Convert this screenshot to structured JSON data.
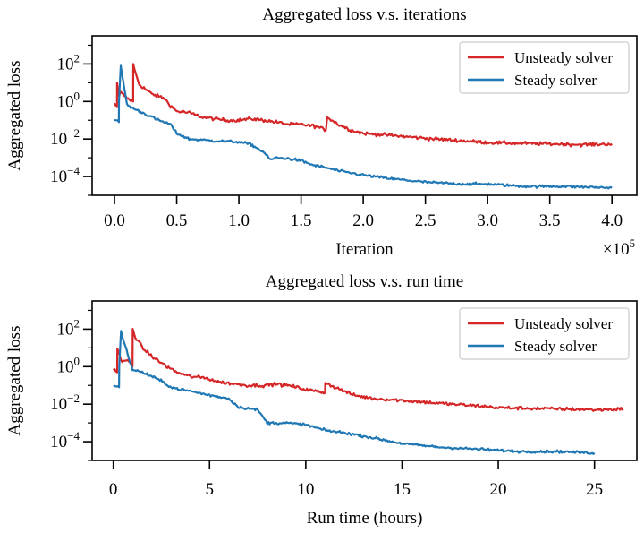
{
  "chart_data": [
    {
      "type": "line",
      "title": "Aggregated loss v.s. iterations",
      "xlabel": "Iteration",
      "ylabel": "Aggregated loss",
      "x_scale_factor": "×10",
      "x_scale_exponent": "5",
      "xlim": [
        -0.18,
        4.2
      ],
      "ylog": true,
      "ylim_exp": [
        -5.0,
        3.5
      ],
      "xticks": [
        {
          "v": 0.0,
          "label": "0.0"
        },
        {
          "v": 0.5,
          "label": "0.5"
        },
        {
          "v": 1.0,
          "label": "1.0"
        },
        {
          "v": 1.5,
          "label": "1.5"
        },
        {
          "v": 2.0,
          "label": "2.0"
        },
        {
          "v": 2.5,
          "label": "2.5"
        },
        {
          "v": 3.0,
          "label": "3.0"
        },
        {
          "v": 3.5,
          "label": "3.5"
        },
        {
          "v": 4.0,
          "label": "4.0"
        }
      ],
      "yticks": [
        {
          "e": 2,
          "base": "10",
          "exp": "2"
        },
        {
          "e": 0,
          "base": "10",
          "exp": "0"
        },
        {
          "e": -2,
          "base": "10",
          "exp": "−2"
        },
        {
          "e": -4,
          "base": "10",
          "exp": "−4"
        }
      ],
      "grid": false,
      "legend_position": "top-right",
      "series": [
        {
          "name": "Unsteady solver",
          "color": "#d62728",
          "noise": 0.09,
          "x": [
            0.0,
            0.02,
            0.021,
            0.035,
            0.05,
            0.1,
            0.15,
            0.151,
            0.17,
            0.2,
            0.3,
            0.4,
            0.45,
            0.5,
            0.6,
            0.7,
            0.8,
            0.9,
            1.0,
            1.1,
            1.2,
            1.3,
            1.4,
            1.5,
            1.6,
            1.65,
            1.7,
            1.71,
            1.75,
            1.8,
            1.9,
            2.0,
            2.2,
            2.5,
            2.8,
            3.0,
            3.2,
            3.5,
            3.8,
            4.0
          ],
          "y": [
            0.8,
            0.5,
            10.0,
            2.0,
            3.0,
            1.5,
            1.0,
            100.0,
            30.0,
            8.0,
            2.5,
            1.5,
            0.6,
            0.3,
            0.25,
            0.15,
            0.12,
            0.1,
            0.1,
            0.12,
            0.1,
            0.08,
            0.06,
            0.06,
            0.05,
            0.04,
            0.03,
            0.15,
            0.1,
            0.06,
            0.03,
            0.02,
            0.016,
            0.011,
            0.008,
            0.0065,
            0.006,
            0.0055,
            0.005,
            0.0055
          ]
        },
        {
          "name": "Steady solver",
          "color": "#1f77b4",
          "noise": 0.07,
          "x": [
            0.0,
            0.035,
            0.036,
            0.05,
            0.06,
            0.1,
            0.13,
            0.2,
            0.3,
            0.35,
            0.4,
            0.45,
            0.5,
            0.6,
            0.8,
            1.0,
            1.05,
            1.1,
            1.2,
            1.25,
            1.3,
            1.4,
            1.5,
            1.6,
            1.7,
            1.8,
            2.0,
            2.2,
            2.5,
            2.8,
            3.0,
            3.3,
            3.6,
            4.0
          ],
          "y": [
            0.1,
            0.08,
            1.0,
            80.0,
            30.0,
            0.7,
            0.5,
            0.3,
            0.15,
            0.1,
            0.08,
            0.06,
            0.02,
            0.01,
            0.008,
            0.007,
            0.006,
            0.005,
            0.002,
            0.0008,
            0.001,
            0.0009,
            0.0007,
            0.0004,
            0.0003,
            0.0002,
            0.00012,
            8e-05,
            5e-05,
            4e-05,
            4e-05,
            3e-05,
            3e-05,
            2.5e-05
          ]
        }
      ]
    },
    {
      "type": "line",
      "title": "Aggregated loss v.s. run time",
      "xlabel": "Run time (hours)",
      "ylabel": "Aggregated loss",
      "xlim": [
        -1.1,
        27.2
      ],
      "ylog": true,
      "ylim_exp": [
        -5.0,
        3.5
      ],
      "xticks": [
        {
          "v": 0,
          "label": "0"
        },
        {
          "v": 5,
          "label": "5"
        },
        {
          "v": 10,
          "label": "10"
        },
        {
          "v": 15,
          "label": "15"
        },
        {
          "v": 20,
          "label": "20"
        },
        {
          "v": 25,
          "label": "25"
        }
      ],
      "yticks": [
        {
          "e": 2,
          "base": "10",
          "exp": "2"
        },
        {
          "e": 0,
          "base": "10",
          "exp": "0"
        },
        {
          "e": -2,
          "base": "10",
          "exp": "−2"
        },
        {
          "e": -4,
          "base": "10",
          "exp": "−4"
        }
      ],
      "grid": false,
      "legend_position": "top-right",
      "series": [
        {
          "name": "Unsteady solver",
          "color": "#d62728",
          "noise": 0.09,
          "x": [
            0.0,
            0.2,
            0.21,
            0.4,
            0.8,
            1.0,
            1.01,
            1.2,
            1.6,
            2.2,
            2.8,
            3.3,
            4.0,
            4.8,
            5.5,
            6.3,
            7.0,
            7.8,
            8.5,
            9.3,
            10.0,
            10.5,
            11.0,
            11.01,
            11.3,
            11.8,
            12.5,
            13.5,
            15.0,
            17.0,
            19.0,
            20.0,
            21.5,
            23.5,
            25.0,
            26.5
          ],
          "y": [
            0.8,
            0.5,
            10.0,
            2.0,
            2.0,
            1.0,
            100.0,
            30.0,
            8.0,
            2.5,
            1.0,
            0.5,
            0.3,
            0.25,
            0.15,
            0.12,
            0.1,
            0.1,
            0.12,
            0.09,
            0.06,
            0.05,
            0.04,
            0.15,
            0.1,
            0.06,
            0.03,
            0.02,
            0.016,
            0.011,
            0.008,
            0.0065,
            0.006,
            0.0055,
            0.005,
            0.0055
          ]
        },
        {
          "name": "Steady solver",
          "color": "#1f77b4",
          "noise": 0.07,
          "x": [
            0.0,
            0.3,
            0.31,
            0.4,
            0.5,
            1.0,
            1.5,
            2.0,
            2.6,
            3.0,
            3.5,
            4.0,
            5.0,
            6.0,
            6.5,
            7.0,
            7.5,
            8.0,
            9.0,
            10.0,
            11.0,
            12.0,
            13.0,
            15.0,
            17.0,
            19.0,
            21.0,
            23.0,
            25.0
          ],
          "y": [
            0.1,
            0.08,
            1.0,
            80.0,
            30.0,
            0.7,
            0.5,
            0.3,
            0.15,
            0.08,
            0.06,
            0.05,
            0.03,
            0.02,
            0.007,
            0.006,
            0.005,
            0.001,
            0.001,
            0.0008,
            0.0004,
            0.0003,
            0.0002,
            8e-05,
            5e-05,
            4e-05,
            3e-05,
            3e-05,
            2.5e-05
          ]
        }
      ]
    }
  ]
}
